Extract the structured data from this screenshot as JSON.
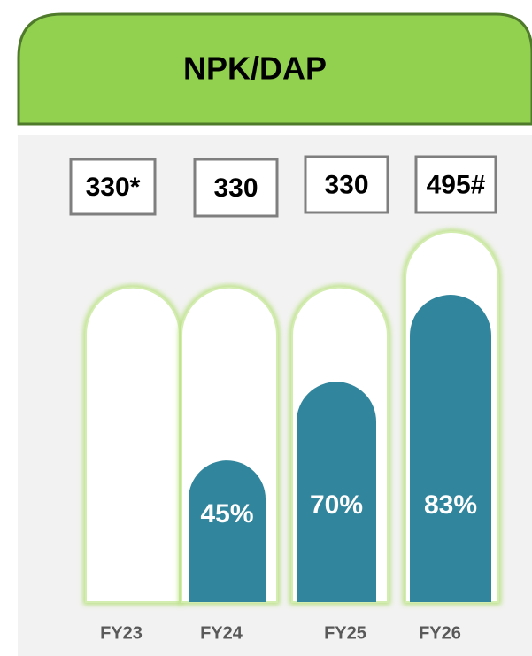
{
  "chart_data": {
    "type": "bar",
    "title": "NPK/DAP",
    "categories": [
      "FY23",
      "FY24",
      "FY25",
      "FY26"
    ],
    "capacity": [
      330,
      330,
      330,
      495
    ],
    "capacity_labels": [
      "330*",
      "330",
      "330",
      "495#"
    ],
    "values": [
      null,
      45,
      70,
      83
    ],
    "value_labels": [
      null,
      "45%",
      "70%",
      "83%"
    ],
    "color": "#31859c"
  }
}
